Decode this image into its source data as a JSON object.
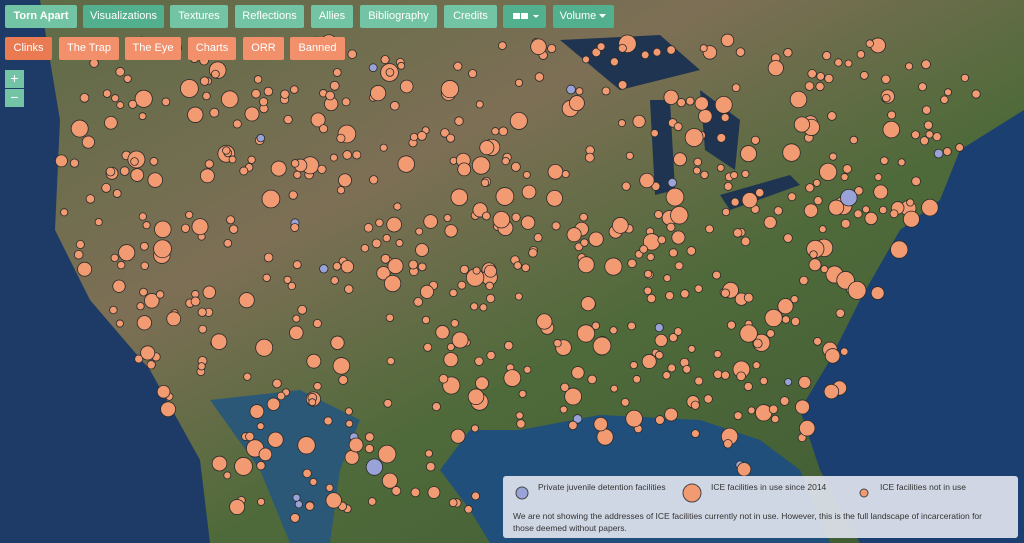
{
  "nav": {
    "primary": [
      "Torn Apart",
      "Visualizations",
      "Textures",
      "Reflections",
      "Allies",
      "Bibliography",
      "Credits"
    ],
    "dropdown": "Volume",
    "secondary": [
      "Clinks",
      "The Trap",
      "The Eye",
      "Charts",
      "ORR",
      "Banned"
    ]
  },
  "zoom": [
    "+",
    "−"
  ],
  "legend": {
    "items": [
      "Private juvenile detention facilities",
      "ICE facilities in use since 2014",
      "ICE facilities not in use"
    ],
    "note": "We are not showing the addresses of ICE facilities currently not in use. However, this is the full landscape of incarceration for those deemed without papers."
  }
}
